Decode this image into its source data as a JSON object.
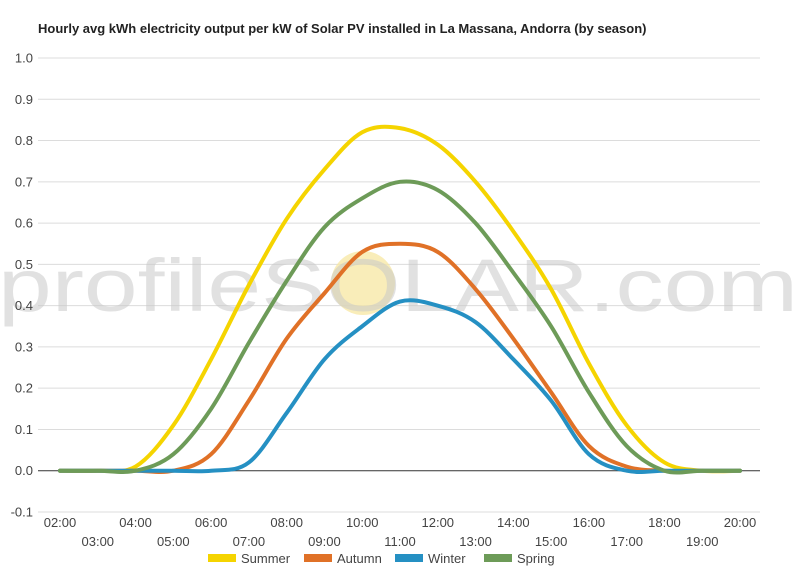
{
  "chart_data": {
    "type": "line",
    "title": "Hourly avg kWh electricity output per kW of Solar PV installed in La Massana, Andorra (by season)",
    "xlabel": "",
    "ylabel": "",
    "ylim": [
      -0.1,
      1.0
    ],
    "yticks": [
      "-0.1",
      "0.0",
      "0.1",
      "0.2",
      "0.3",
      "0.4",
      "0.5",
      "0.6",
      "0.7",
      "0.8",
      "0.9",
      "1.0"
    ],
    "x": [
      "02:00",
      "03:00",
      "04:00",
      "05:00",
      "06:00",
      "07:00",
      "08:00",
      "09:00",
      "10:00",
      "11:00",
      "12:00",
      "13:00",
      "14:00",
      "15:00",
      "16:00",
      "17:00",
      "18:00",
      "19:00",
      "20:00"
    ],
    "grid": true,
    "legend_position": "bottom",
    "series": [
      {
        "name": "Summer",
        "color": "#f5d400",
        "values": [
          0.0,
          0.0,
          0.01,
          0.11,
          0.27,
          0.45,
          0.61,
          0.73,
          0.82,
          0.83,
          0.79,
          0.7,
          0.58,
          0.44,
          0.26,
          0.11,
          0.02,
          0.0,
          0.0
        ]
      },
      {
        "name": "Autumn",
        "color": "#e07127",
        "values": [
          0.0,
          0.0,
          0.0,
          0.0,
          0.04,
          0.17,
          0.32,
          0.43,
          0.53,
          0.55,
          0.53,
          0.44,
          0.32,
          0.19,
          0.06,
          0.01,
          0.0,
          0.0,
          0.0
        ]
      },
      {
        "name": "Winter",
        "color": "#2590c3",
        "values": [
          0.0,
          0.0,
          0.0,
          0.0,
          0.0,
          0.02,
          0.14,
          0.27,
          0.35,
          0.41,
          0.4,
          0.36,
          0.27,
          0.17,
          0.04,
          0.0,
          0.0,
          0.0,
          0.0
        ]
      },
      {
        "name": "Spring",
        "color": "#6d9b58",
        "values": [
          0.0,
          0.0,
          0.0,
          0.04,
          0.15,
          0.31,
          0.46,
          0.59,
          0.66,
          0.7,
          0.68,
          0.6,
          0.48,
          0.35,
          0.19,
          0.06,
          0.0,
          0.0,
          0.0
        ]
      }
    ],
    "watermark": {
      "text": "profileSOLAR.com",
      "sun_color": "#f7e7a1"
    }
  }
}
